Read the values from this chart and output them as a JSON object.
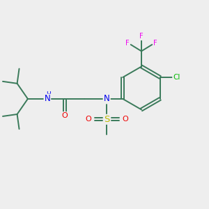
{
  "background_color": "#eeeeee",
  "bond_color": "#3a7a5a",
  "N_color": "#0000ee",
  "O_color": "#ee0000",
  "S_color": "#bbbb00",
  "Cl_color": "#00bb00",
  "F_color": "#ee00ee",
  "figsize": [
    3.0,
    3.0
  ],
  "dpi": 100,
  "xlim": [
    0,
    10
  ],
  "ylim": [
    0,
    10
  ]
}
